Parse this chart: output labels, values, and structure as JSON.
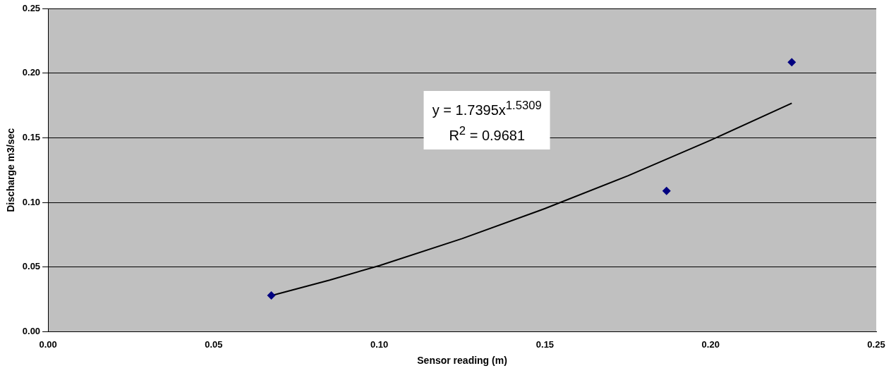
{
  "chart_data": {
    "type": "scatter",
    "xlabel": "Sensor reading (m)",
    "ylabel": "Discharge m3/sec",
    "series": [
      {
        "color": "#000080",
        "x": [
          0.0674,
          0.1867,
          0.2245
        ],
        "values": [
          0.0281,
          0.109,
          0.2084
        ]
      },
      {
        "type": "line",
        "color": "#000000",
        "marker": "none",
        "x": [
          0.0674,
          0.085,
          0.1,
          0.125,
          0.15,
          0.175,
          0.2,
          0.2245
        ],
        "values": [
          0.028,
          0.04,
          0.0512,
          0.0721,
          0.0953,
          0.1206,
          0.1481,
          0.1767
        ]
      }
    ],
    "annotations": [
      "y = 1.7395x$^{1.5309}$",
      "R$^{2}$ = 0.9681"
    ],
    "xlim": [
      0,
      0.25
    ],
    "xticks": [
      {
        "value": 0,
        "label": "0.00"
      },
      {
        "value": 0.05,
        "label": "0.05"
      },
      {
        "value": 0.1,
        "label": "0.10"
      },
      {
        "value": 0.15,
        "label": "0.15"
      },
      {
        "value": 0.2,
        "label": "0.20"
      },
      {
        "value": 0.25,
        "label": "0.25"
      }
    ],
    "ylim": [
      0,
      0.25
    ],
    "yticks": [
      {
        "value": 0,
        "label": "0.00"
      },
      {
        "value": 0.05,
        "label": "0.05"
      },
      {
        "value": 0.1,
        "label": "0.10"
      },
      {
        "value": 0.15,
        "label": "0.15"
      },
      {
        "value": 0.2,
        "label": "0.20"
      },
      {
        "value": 0.25,
        "label": "0.25"
      }
    ],
    "grid": "y",
    "legend": false,
    "marker": "diamond"
  }
}
